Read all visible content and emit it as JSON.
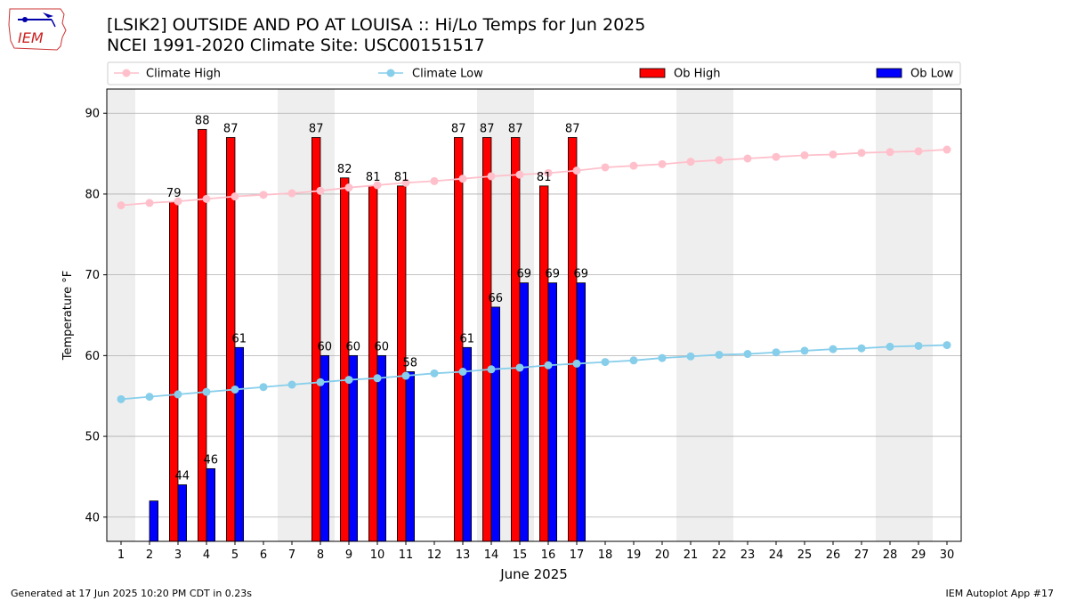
{
  "header": {
    "title_line1": "[LSIK2] OUTSIDE AND PO AT LOUISA :: Hi/Lo Temps for Jun 2025",
    "title_line2": "NCEI 1991-2020 Climate Site: USC00151517",
    "logo_text": "IEM"
  },
  "footer": {
    "generated": "Generated at 17 Jun 2025 10:20 PM CDT in 0.23s",
    "app": "IEM Autoplot App #17"
  },
  "colors": {
    "ob_high": "#ff0000",
    "ob_low": "#0000ff",
    "climate_high": "#ffc0cb",
    "climate_low": "#87ceeb",
    "weekend_shade": "#eeeeee",
    "grid": "#b0b0b0"
  },
  "chart_data": {
    "type": "bar",
    "xlabel": "June 2025",
    "ylabel": "Temperature °F",
    "xlim": [
      0.5,
      30.5
    ],
    "ylim": [
      37,
      93
    ],
    "yticks": [
      40,
      50,
      60,
      70,
      80,
      90
    ],
    "grid": "horizontal",
    "legend_placement": "top",
    "weekend_days": [
      1,
      7,
      8,
      14,
      15,
      21,
      22,
      28,
      29
    ],
    "days": [
      1,
      2,
      3,
      4,
      5,
      6,
      7,
      8,
      9,
      10,
      11,
      12,
      13,
      14,
      15,
      16,
      17,
      18,
      19,
      20,
      21,
      22,
      23,
      24,
      25,
      26,
      27,
      28,
      29,
      30
    ],
    "series": [
      {
        "name": "Climate High",
        "kind": "line",
        "values": [
          78.6,
          78.9,
          79.1,
          79.4,
          79.7,
          79.9,
          80.1,
          80.4,
          80.8,
          81.1,
          81.4,
          81.6,
          81.9,
          82.2,
          82.4,
          82.6,
          82.9,
          83.3,
          83.5,
          83.7,
          84.0,
          84.2,
          84.4,
          84.6,
          84.8,
          84.9,
          85.1,
          85.2,
          85.3,
          85.5
        ]
      },
      {
        "name": "Climate Low",
        "kind": "line",
        "values": [
          54.6,
          54.9,
          55.2,
          55.5,
          55.8,
          56.1,
          56.4,
          56.7,
          57.0,
          57.2,
          57.5,
          57.8,
          58.0,
          58.3,
          58.5,
          58.8,
          59.0,
          59.2,
          59.4,
          59.7,
          59.9,
          60.1,
          60.2,
          60.4,
          60.6,
          60.8,
          60.9,
          61.1,
          61.2,
          61.3
        ]
      },
      {
        "name": "Ob High",
        "kind": "bar",
        "values": [
          null,
          null,
          79,
          88,
          87,
          null,
          null,
          87,
          82,
          81,
          81,
          null,
          87,
          87,
          87,
          81,
          87,
          null,
          null,
          null,
          null,
          null,
          null,
          null,
          null,
          null,
          null,
          null,
          null,
          null
        ],
        "labels": [
          null,
          null,
          "79",
          "88",
          "87",
          null,
          null,
          "87",
          "82",
          "81",
          "81",
          null,
          "87",
          "87",
          "87",
          "81",
          "87",
          null,
          null,
          null,
          null,
          null,
          null,
          null,
          null,
          null,
          null,
          null,
          null,
          null
        ]
      },
      {
        "name": "Ob Low",
        "kind": "bar",
        "values": [
          null,
          42,
          44,
          46,
          61,
          null,
          null,
          60,
          60,
          60,
          58,
          null,
          61,
          66,
          69,
          69,
          69,
          null,
          null,
          null,
          null,
          null,
          null,
          null,
          null,
          null,
          null,
          null,
          null,
          null
        ],
        "labels": [
          null,
          null,
          "44",
          "46",
          "61",
          null,
          null,
          "60",
          "60",
          "60",
          "58",
          null,
          "61",
          "66",
          "69",
          "69",
          "69",
          null,
          null,
          null,
          null,
          null,
          null,
          null,
          null,
          null,
          null,
          null,
          null,
          null
        ]
      }
    ]
  }
}
